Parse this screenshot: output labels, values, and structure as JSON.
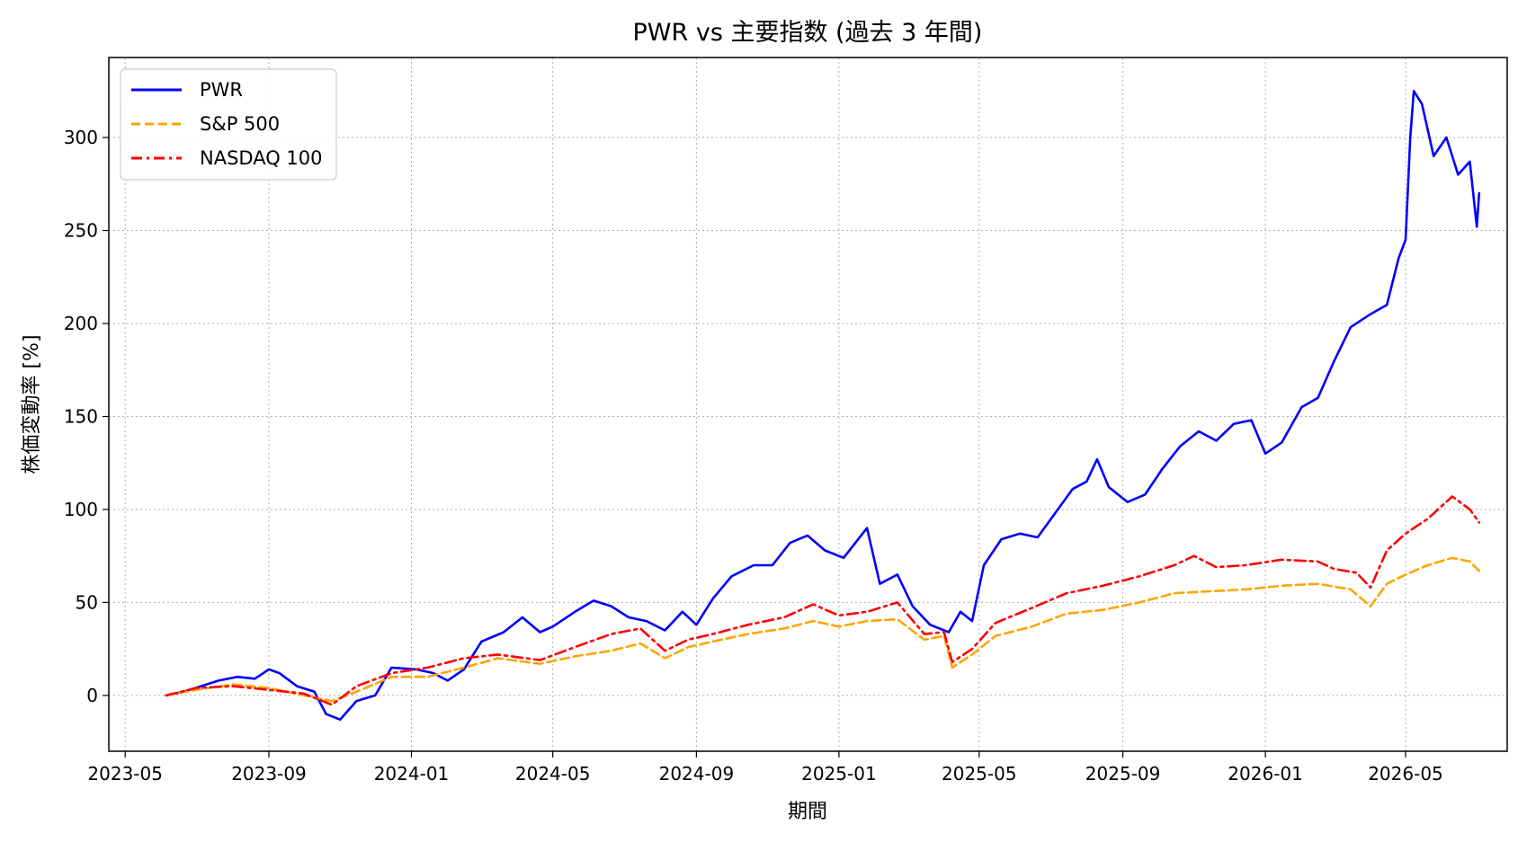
{
  "chart_data": {
    "type": "line",
    "title": "PWR vs 主要指数 (過去 3 年間)",
    "xlabel": "期間",
    "ylabel": "株価変動率 [%]",
    "xlim": [
      "2023-04-17",
      "2026-07-27"
    ],
    "ylim": [
      -30,
      343
    ],
    "grid": true,
    "legend_position": "top-left",
    "x_ticks": [
      "2023-05",
      "2023-09",
      "2024-01",
      "2024-05",
      "2024-09",
      "2025-01",
      "2025-05",
      "2025-09",
      "2026-01",
      "2026-05"
    ],
    "y_ticks": [
      0,
      50,
      100,
      150,
      200,
      250,
      300
    ],
    "series": [
      {
        "name": "PWR",
        "color": "#0000ff",
        "style": "solid",
        "points": [
          [
            "2023-06-05",
            0
          ],
          [
            "2023-06-20",
            2
          ],
          [
            "2023-07-05",
            5
          ],
          [
            "2023-07-20",
            8
          ],
          [
            "2023-08-05",
            10
          ],
          [
            "2023-08-20",
            9
          ],
          [
            "2023-09-01",
            14
          ],
          [
            "2023-09-10",
            12
          ],
          [
            "2023-09-25",
            5
          ],
          [
            "2023-10-10",
            2
          ],
          [
            "2023-10-20",
            -10
          ],
          [
            "2023-11-01",
            -13
          ],
          [
            "2023-11-15",
            -3
          ],
          [
            "2023-12-01",
            0
          ],
          [
            "2023-12-15",
            15
          ],
          [
            "2024-01-05",
            14
          ],
          [
            "2024-01-20",
            12
          ],
          [
            "2024-02-01",
            8
          ],
          [
            "2024-02-15",
            14
          ],
          [
            "2024-03-01",
            29
          ],
          [
            "2024-03-20",
            34
          ],
          [
            "2024-04-05",
            42
          ],
          [
            "2024-04-20",
            34
          ],
          [
            "2024-05-01",
            37
          ],
          [
            "2024-05-20",
            45
          ],
          [
            "2024-06-05",
            51
          ],
          [
            "2024-06-20",
            48
          ],
          [
            "2024-07-05",
            42
          ],
          [
            "2024-07-20",
            40
          ],
          [
            "2024-08-05",
            35
          ],
          [
            "2024-08-20",
            45
          ],
          [
            "2024-09-01",
            38
          ],
          [
            "2024-09-15",
            52
          ],
          [
            "2024-10-01",
            64
          ],
          [
            "2024-10-20",
            70
          ],
          [
            "2024-11-05",
            70
          ],
          [
            "2024-11-20",
            82
          ],
          [
            "2024-12-05",
            86
          ],
          [
            "2024-12-20",
            78
          ],
          [
            "2025-01-05",
            74
          ],
          [
            "2025-01-25",
            90
          ],
          [
            "2025-02-05",
            60
          ],
          [
            "2025-02-20",
            65
          ],
          [
            "2025-03-05",
            48
          ],
          [
            "2025-03-20",
            38
          ],
          [
            "2025-04-05",
            34
          ],
          [
            "2025-04-15",
            45
          ],
          [
            "2025-04-25",
            40
          ],
          [
            "2025-05-05",
            70
          ],
          [
            "2025-05-20",
            84
          ],
          [
            "2025-06-05",
            87
          ],
          [
            "2025-06-20",
            85
          ],
          [
            "2025-07-05",
            98
          ],
          [
            "2025-07-20",
            111
          ],
          [
            "2025-08-01",
            115
          ],
          [
            "2025-08-10",
            127
          ],
          [
            "2025-08-20",
            112
          ],
          [
            "2025-09-05",
            104
          ],
          [
            "2025-09-20",
            108
          ],
          [
            "2025-10-05",
            122
          ],
          [
            "2025-10-20",
            134
          ],
          [
            "2025-11-05",
            142
          ],
          [
            "2025-11-20",
            137
          ],
          [
            "2025-12-05",
            146
          ],
          [
            "2025-12-20",
            148
          ],
          [
            "2026-01-01",
            130
          ],
          [
            "2026-01-15",
            136
          ],
          [
            "2026-02-01",
            155
          ],
          [
            "2026-02-15",
            160
          ],
          [
            "2026-03-01",
            180
          ],
          [
            "2026-03-15",
            198
          ],
          [
            "2026-04-01",
            205
          ],
          [
            "2026-04-15",
            210
          ],
          [
            "2026-04-25",
            235
          ],
          [
            "2026-05-01",
            245
          ],
          [
            "2026-05-05",
            300
          ],
          [
            "2026-05-08",
            325
          ],
          [
            "2026-05-15",
            318
          ],
          [
            "2026-05-25",
            290
          ],
          [
            "2026-06-05",
            300
          ],
          [
            "2026-06-15",
            280
          ],
          [
            "2026-06-25",
            287
          ],
          [
            "2026-07-01",
            252
          ],
          [
            "2026-07-03",
            270
          ]
        ]
      },
      {
        "name": "S&P 500",
        "color": "#ffa500",
        "style": "dashed",
        "points": [
          [
            "2023-06-05",
            0
          ],
          [
            "2023-07-01",
            3
          ],
          [
            "2023-08-01",
            6
          ],
          [
            "2023-09-01",
            4
          ],
          [
            "2023-10-01",
            0
          ],
          [
            "2023-10-25",
            -3
          ],
          [
            "2023-11-15",
            2
          ],
          [
            "2023-12-15",
            10
          ],
          [
            "2024-01-15",
            10
          ],
          [
            "2024-02-15",
            15
          ],
          [
            "2024-03-15",
            20
          ],
          [
            "2024-04-20",
            17
          ],
          [
            "2024-05-20",
            21
          ],
          [
            "2024-06-20",
            24
          ],
          [
            "2024-07-15",
            28
          ],
          [
            "2024-08-05",
            20
          ],
          [
            "2024-08-25",
            26
          ],
          [
            "2024-09-15",
            29
          ],
          [
            "2024-10-15",
            33
          ],
          [
            "2024-11-15",
            36
          ],
          [
            "2024-12-10",
            40
          ],
          [
            "2025-01-01",
            37
          ],
          [
            "2025-01-25",
            40
          ],
          [
            "2025-02-20",
            41
          ],
          [
            "2025-03-15",
            30
          ],
          [
            "2025-04-01",
            32
          ],
          [
            "2025-04-08",
            15
          ],
          [
            "2025-04-25",
            22
          ],
          [
            "2025-05-15",
            32
          ],
          [
            "2025-06-15",
            37
          ],
          [
            "2025-07-15",
            44
          ],
          [
            "2025-08-15",
            46
          ],
          [
            "2025-09-15",
            50
          ],
          [
            "2025-10-15",
            55
          ],
          [
            "2025-11-15",
            56
          ],
          [
            "2025-12-15",
            57
          ],
          [
            "2026-01-15",
            59
          ],
          [
            "2026-02-15",
            60
          ],
          [
            "2026-03-15",
            57
          ],
          [
            "2026-04-01",
            48
          ],
          [
            "2026-04-15",
            60
          ],
          [
            "2026-05-01",
            65
          ],
          [
            "2026-05-20",
            70
          ],
          [
            "2026-06-10",
            74
          ],
          [
            "2026-06-25",
            72
          ],
          [
            "2026-07-03",
            67
          ]
        ]
      },
      {
        "name": "NASDAQ 100",
        "color": "#ff0000",
        "style": "dashdot",
        "points": [
          [
            "2023-06-05",
            0
          ],
          [
            "2023-07-01",
            4
          ],
          [
            "2023-08-01",
            5
          ],
          [
            "2023-09-01",
            3
          ],
          [
            "2023-10-01",
            1
          ],
          [
            "2023-10-25",
            -5
          ],
          [
            "2023-11-15",
            5
          ],
          [
            "2023-12-15",
            12
          ],
          [
            "2024-01-15",
            15
          ],
          [
            "2024-02-15",
            20
          ],
          [
            "2024-03-15",
            22
          ],
          [
            "2024-04-20",
            19
          ],
          [
            "2024-05-20",
            26
          ],
          [
            "2024-06-20",
            33
          ],
          [
            "2024-07-15",
            36
          ],
          [
            "2024-08-05",
            24
          ],
          [
            "2024-08-25",
            30
          ],
          [
            "2024-09-15",
            33
          ],
          [
            "2024-10-15",
            38
          ],
          [
            "2024-11-15",
            42
          ],
          [
            "2024-12-10",
            49
          ],
          [
            "2025-01-01",
            43
          ],
          [
            "2025-01-25",
            45
          ],
          [
            "2025-02-20",
            50
          ],
          [
            "2025-03-15",
            33
          ],
          [
            "2025-04-01",
            34
          ],
          [
            "2025-04-08",
            18
          ],
          [
            "2025-04-25",
            25
          ],
          [
            "2025-05-15",
            39
          ],
          [
            "2025-06-15",
            47
          ],
          [
            "2025-07-15",
            55
          ],
          [
            "2025-08-15",
            59
          ],
          [
            "2025-09-15",
            64
          ],
          [
            "2025-10-15",
            70
          ],
          [
            "2025-11-01",
            75
          ],
          [
            "2025-11-20",
            69
          ],
          [
            "2025-12-15",
            70
          ],
          [
            "2026-01-15",
            73
          ],
          [
            "2026-02-15",
            72
          ],
          [
            "2026-03-01",
            68
          ],
          [
            "2026-03-20",
            66
          ],
          [
            "2026-04-01",
            58
          ],
          [
            "2026-04-15",
            78
          ],
          [
            "2026-05-01",
            87
          ],
          [
            "2026-05-20",
            95
          ],
          [
            "2026-06-10",
            107
          ],
          [
            "2026-06-25",
            100
          ],
          [
            "2026-07-03",
            93
          ]
        ]
      }
    ]
  }
}
